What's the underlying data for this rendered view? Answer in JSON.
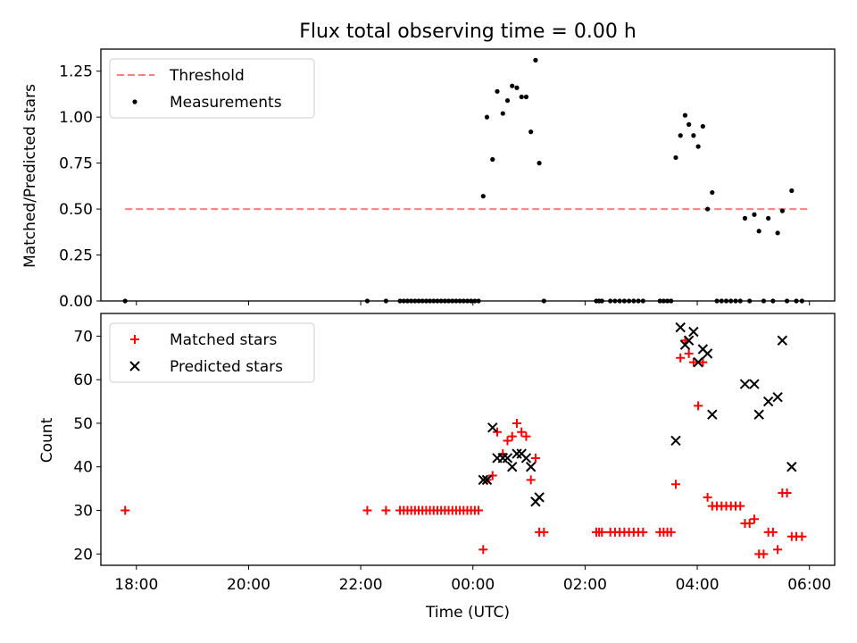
{
  "title": "Flux total observing time = 0.00 h",
  "colors": {
    "threshold": "#ff7f7f",
    "measurements": "#000000",
    "matched": "#ff0000",
    "predicted": "#000000"
  },
  "chart_data": [
    {
      "type": "scatter",
      "ylabel": "Matched/Predicted stars",
      "ylim": [
        0,
        1.37
      ],
      "xlim": [
        "17:22",
        "06:27"
      ],
      "yticks": [
        "0.00",
        "0.25",
        "0.50",
        "0.75",
        "1.00",
        "1.25"
      ],
      "grid": false,
      "legend_position": "top-left",
      "threshold": {
        "name": "Threshold",
        "value": 0.5,
        "x_start": "17:48",
        "x_end": "05:58"
      },
      "series": [
        {
          "name": "Measurements",
          "points": [
            [
              "17:48",
              0.0
            ],
            [
              "22:07",
              0.0
            ],
            [
              "22:27",
              0.0
            ],
            [
              "22:42",
              0.0
            ],
            [
              "22:46",
              0.0
            ],
            [
              "22:50",
              0.0
            ],
            [
              "22:54",
              0.0
            ],
            [
              "22:58",
              0.0
            ],
            [
              "23:02",
              0.0
            ],
            [
              "23:06",
              0.0
            ],
            [
              "23:10",
              0.0
            ],
            [
              "23:14",
              0.0
            ],
            [
              "23:18",
              0.0
            ],
            [
              "23:22",
              0.0
            ],
            [
              "23:26",
              0.0
            ],
            [
              "23:30",
              0.0
            ],
            [
              "23:34",
              0.0
            ],
            [
              "23:38",
              0.0
            ],
            [
              "23:42",
              0.0
            ],
            [
              "23:46",
              0.0
            ],
            [
              "23:50",
              0.0
            ],
            [
              "23:54",
              0.0
            ],
            [
              "23:58",
              0.0
            ],
            [
              "00:02",
              0.0
            ],
            [
              "00:06",
              0.0
            ],
            [
              "00:11",
              0.57
            ],
            [
              "00:15",
              1.0
            ],
            [
              "00:21",
              0.77
            ],
            [
              "00:26",
              1.14
            ],
            [
              "00:32",
              1.02
            ],
            [
              "00:37",
              1.09
            ],
            [
              "00:42",
              1.17
            ],
            [
              "00:47",
              1.16
            ],
            [
              "00:52",
              1.11
            ],
            [
              "00:57",
              1.11
            ],
            [
              "01:02",
              0.92
            ],
            [
              "01:07",
              1.31
            ],
            [
              "01:11",
              0.75
            ],
            [
              "01:16",
              0.0
            ],
            [
              "02:12",
              0.0
            ],
            [
              "02:15",
              0.0
            ],
            [
              "02:18",
              0.0
            ],
            [
              "02:27",
              0.0
            ],
            [
              "02:32",
              0.0
            ],
            [
              "02:37",
              0.0
            ],
            [
              "02:42",
              0.0
            ],
            [
              "02:47",
              0.0
            ],
            [
              "02:52",
              0.0
            ],
            [
              "02:57",
              0.0
            ],
            [
              "03:02",
              0.0
            ],
            [
              "03:20",
              0.0
            ],
            [
              "03:24",
              0.0
            ],
            [
              "03:28",
              0.0
            ],
            [
              "03:32",
              0.0
            ],
            [
              "03:37",
              0.78
            ],
            [
              "03:42",
              0.9
            ],
            [
              "03:47",
              1.01
            ],
            [
              "03:51",
              0.96
            ],
            [
              "03:56",
              0.9
            ],
            [
              "04:01",
              0.84
            ],
            [
              "04:06",
              0.95
            ],
            [
              "04:11",
              0.5
            ],
            [
              "04:16",
              0.59
            ],
            [
              "04:21",
              0.0
            ],
            [
              "04:26",
              0.0
            ],
            [
              "04:31",
              0.0
            ],
            [
              "04:36",
              0.0
            ],
            [
              "04:41",
              0.0
            ],
            [
              "04:46",
              0.0
            ],
            [
              "04:51",
              0.45
            ],
            [
              "04:56",
              0.0
            ],
            [
              "05:01",
              0.47
            ],
            [
              "05:06",
              0.38
            ],
            [
              "05:11",
              0.0
            ],
            [
              "05:16",
              0.45
            ],
            [
              "05:21",
              0.0
            ],
            [
              "05:26",
              0.37
            ],
            [
              "05:31",
              0.49
            ],
            [
              "05:36",
              0.0
            ],
            [
              "05:41",
              0.6
            ],
            [
              "05:46",
              0.0
            ],
            [
              "05:52",
              0.0
            ]
          ]
        }
      ]
    },
    {
      "type": "scatter",
      "xlabel": "Time (UTC)",
      "ylabel": "Count",
      "ylim": [
        17.4,
        75.2
      ],
      "xlim": [
        "17:22",
        "06:27"
      ],
      "xticks": [
        "18:00",
        "20:00",
        "22:00",
        "00:00",
        "02:00",
        "04:00",
        "06:00"
      ],
      "yticks": [
        "20",
        "30",
        "40",
        "50",
        "60",
        "70"
      ],
      "grid": false,
      "legend_position": "top-left",
      "series": [
        {
          "name": "Matched stars",
          "points": [
            [
              "17:48",
              30
            ],
            [
              "22:07",
              30
            ],
            [
              "22:27",
              30
            ],
            [
              "22:42",
              30
            ],
            [
              "22:46",
              30
            ],
            [
              "22:50",
              30
            ],
            [
              "22:54",
              30
            ],
            [
              "22:58",
              30
            ],
            [
              "23:02",
              30
            ],
            [
              "23:06",
              30
            ],
            [
              "23:10",
              30
            ],
            [
              "23:14",
              30
            ],
            [
              "23:18",
              30
            ],
            [
              "23:22",
              30
            ],
            [
              "23:26",
              30
            ],
            [
              "23:30",
              30
            ],
            [
              "23:34",
              30
            ],
            [
              "23:38",
              30
            ],
            [
              "23:42",
              30
            ],
            [
              "23:46",
              30
            ],
            [
              "23:50",
              30
            ],
            [
              "23:54",
              30
            ],
            [
              "23:58",
              30
            ],
            [
              "00:02",
              30
            ],
            [
              "00:06",
              30
            ],
            [
              "00:11",
              21
            ],
            [
              "00:15",
              37
            ],
            [
              "00:21",
              38
            ],
            [
              "00:26",
              48
            ],
            [
              "00:32",
              43
            ],
            [
              "00:37",
              46
            ],
            [
              "00:42",
              47
            ],
            [
              "00:47",
              50
            ],
            [
              "00:52",
              48
            ],
            [
              "00:57",
              47
            ],
            [
              "01:02",
              37
            ],
            [
              "01:07",
              42
            ],
            [
              "01:11",
              25
            ],
            [
              "01:16",
              25
            ],
            [
              "02:12",
              25
            ],
            [
              "02:15",
              25
            ],
            [
              "02:18",
              25
            ],
            [
              "02:27",
              25
            ],
            [
              "02:32",
              25
            ],
            [
              "02:37",
              25
            ],
            [
              "02:42",
              25
            ],
            [
              "02:47",
              25
            ],
            [
              "02:52",
              25
            ],
            [
              "02:57",
              25
            ],
            [
              "03:02",
              25
            ],
            [
              "03:20",
              25
            ],
            [
              "03:24",
              25
            ],
            [
              "03:28",
              25
            ],
            [
              "03:32",
              25
            ],
            [
              "03:37",
              36
            ],
            [
              "03:42",
              65
            ],
            [
              "03:47",
              69
            ],
            [
              "03:51",
              66
            ],
            [
              "03:56",
              64
            ],
            [
              "04:01",
              54
            ],
            [
              "04:06",
              64
            ],
            [
              "04:11",
              33
            ],
            [
              "04:16",
              31
            ],
            [
              "04:21",
              31
            ],
            [
              "04:26",
              31
            ],
            [
              "04:31",
              31
            ],
            [
              "04:36",
              31
            ],
            [
              "04:41",
              31
            ],
            [
              "04:46",
              31
            ],
            [
              "04:51",
              27
            ],
            [
              "04:56",
              27
            ],
            [
              "05:01",
              28
            ],
            [
              "05:06",
              20
            ],
            [
              "05:11",
              20
            ],
            [
              "05:16",
              25
            ],
            [
              "05:21",
              25
            ],
            [
              "05:26",
              21
            ],
            [
              "05:31",
              34
            ],
            [
              "05:36",
              34
            ],
            [
              "05:41",
              24
            ],
            [
              "05:46",
              24
            ],
            [
              "05:52",
              24
            ]
          ]
        },
        {
          "name": "Predicted stars",
          "points": [
            [
              "00:11",
              37
            ],
            [
              "00:15",
              37
            ],
            [
              "00:21",
              49
            ],
            [
              "00:26",
              42
            ],
            [
              "00:32",
              42
            ],
            [
              "00:37",
              42
            ],
            [
              "00:42",
              40
            ],
            [
              "00:47",
              43
            ],
            [
              "00:52",
              43
            ],
            [
              "00:57",
              42
            ],
            [
              "01:02",
              40
            ],
            [
              "01:07",
              32
            ],
            [
              "01:11",
              33
            ],
            [
              "03:37",
              46
            ],
            [
              "03:42",
              72
            ],
            [
              "03:47",
              68
            ],
            [
              "03:51",
              69
            ],
            [
              "03:56",
              71
            ],
            [
              "04:01",
              64
            ],
            [
              "04:06",
              67
            ],
            [
              "04:11",
              66
            ],
            [
              "04:16",
              52
            ],
            [
              "04:51",
              59
            ],
            [
              "05:01",
              59
            ],
            [
              "05:06",
              52
            ],
            [
              "05:16",
              55
            ],
            [
              "05:26",
              56
            ],
            [
              "05:31",
              69
            ],
            [
              "05:41",
              40
            ]
          ]
        }
      ]
    }
  ]
}
